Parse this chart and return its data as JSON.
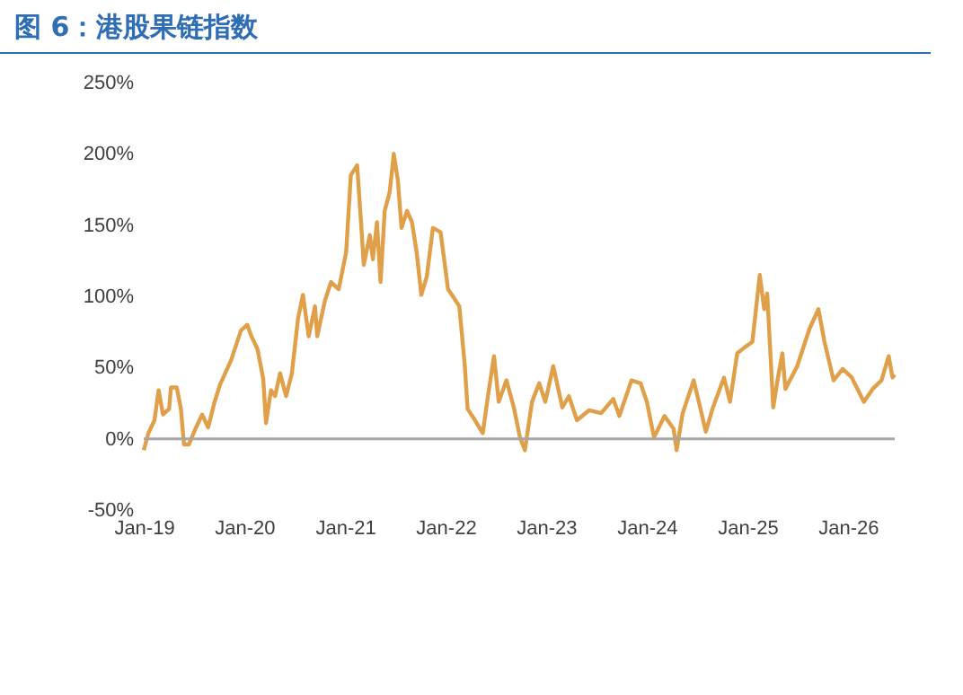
{
  "chart_data": {
    "type": "line",
    "title": "图 6：港股果链指数",
    "x": [
      "2019-01-01",
      "2019-01-18",
      "2019-02-09",
      "2019-02-24",
      "2019-03-12",
      "2019-04-03",
      "2019-04-10",
      "2019-05-01",
      "2019-05-16",
      "2019-05-27",
      "2019-06-14",
      "2019-07-10",
      "2019-08-01",
      "2019-08-23",
      "2019-09-14",
      "2019-10-05",
      "2019-11-14",
      "2019-12-20",
      "2020-01-12",
      "2020-01-27",
      "2020-02-18",
      "2020-03-10",
      "2020-03-20",
      "2020-04-07",
      "2020-04-22",
      "2020-05-10",
      "2020-06-01",
      "2020-06-22",
      "2020-07-14",
      "2020-08-01",
      "2020-08-22",
      "2020-09-14",
      "2020-09-22",
      "2020-10-20",
      "2020-11-11",
      "2020-12-09",
      "2021-01-05",
      "2021-01-22",
      "2021-02-14",
      "2021-02-28",
      "2021-03-10",
      "2021-04-01",
      "2021-04-12",
      "2021-04-27",
      "2021-05-10",
      "2021-05-25",
      "2021-06-12",
      "2021-06-27",
      "2021-07-12",
      "2021-07-25",
      "2021-08-14",
      "2021-09-01",
      "2021-09-18",
      "2021-10-05",
      "2021-10-25",
      "2021-11-16",
      "2021-12-14",
      "2022-01-10",
      "2022-02-20",
      "2022-03-12",
      "2022-03-22",
      "2022-04-18",
      "2022-05-16",
      "2022-06-07",
      "2022-06-26",
      "2022-07-13",
      "2022-08-10",
      "2022-09-06",
      "2022-09-28",
      "2022-10-16",
      "2022-11-11",
      "2022-12-07",
      "2022-12-29",
      "2023-01-27",
      "2023-03-01",
      "2023-03-25",
      "2023-04-23",
      "2023-06-06",
      "2023-07-20",
      "2023-09-02",
      "2023-09-24",
      "2023-11-07",
      "2023-12-10",
      "2024-01-02",
      "2024-01-28",
      "2024-03-06",
      "2024-04-08",
      "2024-04-19",
      "2024-05-11",
      "2024-06-20",
      "2024-07-16",
      "2024-08-03",
      "2024-08-29",
      "2024-10-08",
      "2024-10-30",
      "2024-11-25",
      "2024-12-21",
      "2025-01-19",
      "2025-02-15",
      "2025-03-03",
      "2025-03-14",
      "2025-04-05",
      "2025-04-22",
      "2025-05-08",
      "2025-05-19",
      "2025-07-01",
      "2025-08-14",
      "2025-09-16",
      "2025-10-08",
      "2025-11-10",
      "2025-12-13",
      "2026-01-15",
      "2026-02-28",
      "2026-04-01",
      "2026-05-03",
      "2026-05-29",
      "2026-06-12",
      "2026-06-20"
    ],
    "series": [
      {
        "color": "#e0a04a",
        "values": [
          -8,
          4,
          13,
          34,
          17,
          21,
          36,
          36,
          21,
          -4,
          -4,
          8,
          17,
          8,
          25,
          38,
          55,
          76,
          80,
          72,
          63,
          42,
          11,
          34,
          30,
          46,
          30,
          46,
          84,
          101,
          72,
          93,
          72,
          97,
          110,
          105,
          131,
          185,
          192,
          152,
          122,
          143,
          126,
          152,
          110,
          160,
          173,
          200,
          181,
          148,
          160,
          152,
          131,
          101,
          114,
          148,
          145,
          105,
          93,
          51,
          21,
          13,
          4,
          34,
          58,
          26,
          41,
          22,
          1,
          -8,
          26,
          39,
          26,
          51,
          22,
          30,
          13,
          20,
          18,
          28,
          16,
          41,
          39,
          26,
          1,
          16,
          7,
          -8,
          18,
          41,
          20,
          5,
          22,
          43,
          26,
          60,
          64,
          68,
          115,
          91,
          102,
          22,
          43,
          60,
          35,
          51,
          77,
          91,
          68,
          41,
          49,
          43,
          26,
          35,
          41,
          58,
          43,
          45
        ]
      }
    ],
    "xlim": [
      "2019-01-01",
      "2026-06-20"
    ],
    "xticks": [
      {
        "value": "2019-01-01",
        "label": "Jan-19"
      },
      {
        "value": "2020-01-01",
        "label": "Jan-20"
      },
      {
        "value": "2021-01-01",
        "label": "Jan-21"
      },
      {
        "value": "2022-01-01",
        "label": "Jan-22"
      },
      {
        "value": "2023-01-01",
        "label": "Jan-23"
      },
      {
        "value": "2024-01-01",
        "label": "Jan-24"
      },
      {
        "value": "2025-01-01",
        "label": "Jan-25"
      },
      {
        "value": "2026-01-01",
        "label": "Jan-26"
      }
    ],
    "ylim": [
      -50,
      250
    ],
    "yticks": [
      {
        "value": -50,
        "label": "-50%"
      },
      {
        "value": 0,
        "label": "0%"
      },
      {
        "value": 50,
        "label": "50%"
      },
      {
        "value": 100,
        "label": "100%"
      },
      {
        "value": 150,
        "label": "150%"
      },
      {
        "value": 200,
        "label": "200%"
      },
      {
        "value": 250,
        "label": "250%"
      }
    ],
    "ref_lines": [
      {
        "axis": "y",
        "value": 0,
        "color": "#a6a6a6"
      }
    ]
  }
}
